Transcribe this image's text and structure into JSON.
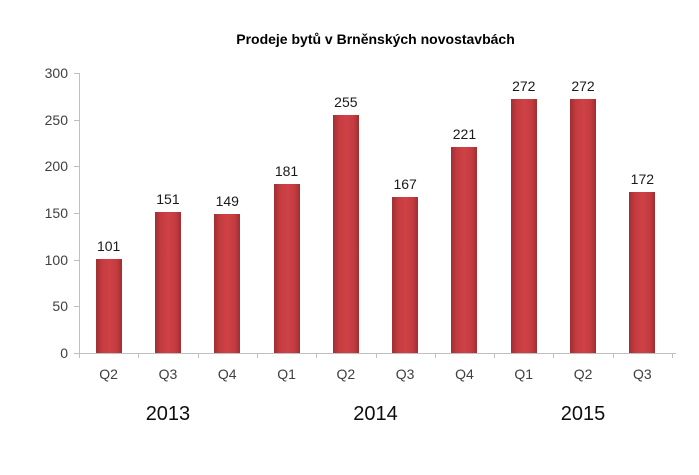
{
  "chart_data": {
    "type": "bar",
    "title": "Prodeje bytů v Brněnských novostavbách",
    "categories": [
      "Q2",
      "Q3",
      "Q4",
      "Q1",
      "Q2",
      "Q3",
      "Q4",
      "Q1",
      "Q2",
      "Q3"
    ],
    "values": [
      101,
      151,
      149,
      181,
      255,
      167,
      221,
      272,
      272,
      172
    ],
    "year_groups": [
      {
        "label": "2013",
        "start": 0,
        "end": 2
      },
      {
        "label": "2014",
        "start": 3,
        "end": 6
      },
      {
        "label": "2015",
        "start": 7,
        "end": 9
      }
    ],
    "yticks": [
      0,
      50,
      100,
      150,
      200,
      250,
      300
    ],
    "ylim": [
      0,
      300
    ],
    "xlabel": "",
    "ylabel": "",
    "grid": false,
    "legend": "none",
    "colors": {
      "bar_center": "#ce4246",
      "bar_mid": "#c43b3f",
      "bar_edge": "#9e2f32",
      "axis": "#bfbfbf",
      "tick_label": "#404040",
      "value_label": "#1a1a1a",
      "year_label": "#0d0d0d",
      "title": "#000000",
      "background": "#ffffff"
    }
  }
}
